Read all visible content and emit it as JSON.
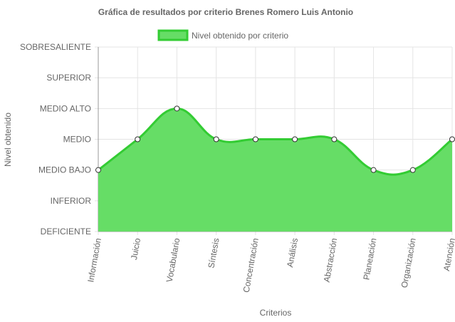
{
  "chart_data": {
    "type": "area",
    "title": "Gráfica de resultados por criterio Brenes Romero Luis Antonio",
    "xlabel": "Criterios",
    "ylabel": "Nivel obtenido",
    "y_levels": [
      "DEFICIENTE",
      "INFERIOR",
      "MEDIO BAJO",
      "MEDIO",
      "MEDIO ALTO",
      "SUPERIOR",
      "SOBRESALIENTE"
    ],
    "ylim": [
      0,
      6
    ],
    "categories": [
      "Información",
      "Juicio",
      "Vocabulario",
      "Síntesis",
      "Concentración",
      "Análisis",
      "Abstracción",
      "Planeación",
      "Organización",
      "Atención"
    ],
    "series": [
      {
        "name": "Nivel obtenido por criterio",
        "values": [
          2,
          3,
          4,
          3,
          3,
          3,
          3,
          2,
          2,
          3
        ]
      }
    ],
    "legend_position": "top",
    "grid": true,
    "colors": {
      "fill": "#66dd66",
      "line": "#33cc33",
      "point_fill": "#ffffff",
      "point_stroke": "#333333",
      "grid": "#e4e4e4",
      "axis": "#999999"
    }
  }
}
